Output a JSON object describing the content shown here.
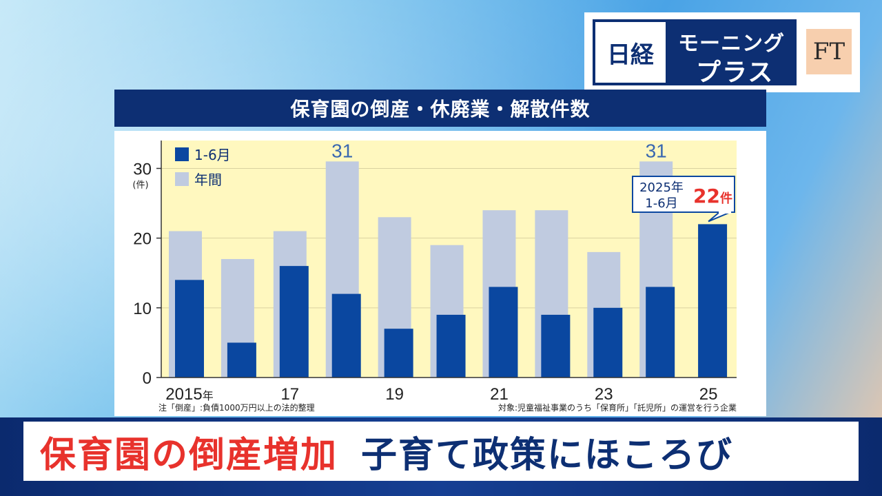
{
  "logo": {
    "nikkei": "日経",
    "program_line1": "モーニング",
    "program_line2": "プラス",
    "ft": "FT"
  },
  "chart_title": "保育園の倒産・休廃業・解散件数",
  "chart_data": {
    "type": "bar",
    "title": "保育園の倒産・休廃業・解散件数",
    "unit_label": "(件)",
    "categories": [
      "2015",
      "2016",
      "2017",
      "2018",
      "2019",
      "2020",
      "2021",
      "2022",
      "2023",
      "2024",
      "2025"
    ],
    "x_tick_labels": [
      {
        "index": 0,
        "label": "2015年"
      },
      {
        "index": 2,
        "label": "17"
      },
      {
        "index": 4,
        "label": "19"
      },
      {
        "index": 6,
        "label": "21"
      },
      {
        "index": 8,
        "label": "23"
      },
      {
        "index": 10,
        "label": "25"
      }
    ],
    "series": [
      {
        "name": "年間",
        "color": "#c0cbe0",
        "values": [
          21,
          17,
          21,
          31,
          23,
          19,
          24,
          24,
          18,
          31,
          null
        ]
      },
      {
        "name": "1-6月",
        "color": "#0a47a0",
        "values": [
          14,
          5,
          16,
          12,
          7,
          9,
          13,
          9,
          10,
          13,
          22
        ]
      }
    ],
    "y_ticks": [
      0,
      10,
      20,
      30
    ],
    "ylim": [
      0,
      34
    ],
    "grid": true,
    "legend_position": "top-left",
    "value_labels": [
      {
        "series": "年間",
        "index": 3,
        "text": "31"
      },
      {
        "series": "年間",
        "index": 9,
        "text": "31"
      }
    ],
    "callout": {
      "index": 10,
      "line1": "2025年",
      "line2": "1-6月",
      "value": "22",
      "unit": "件"
    },
    "note_left": "注「倒産」:負債1000万円以上の法的整理",
    "note_right": "対象:児童福祉事業のうち「保育所」「託児所」の運営を行う企業"
  },
  "colors": {
    "navy": "#0d2f73",
    "plot_bg": "#fff8bf",
    "accent_red": "#e8322c",
    "value_label_blue": "#3a68b0"
  },
  "caption": {
    "red_text": "保育園の倒産増加",
    "blue_text": "子育て政策にほころび"
  }
}
